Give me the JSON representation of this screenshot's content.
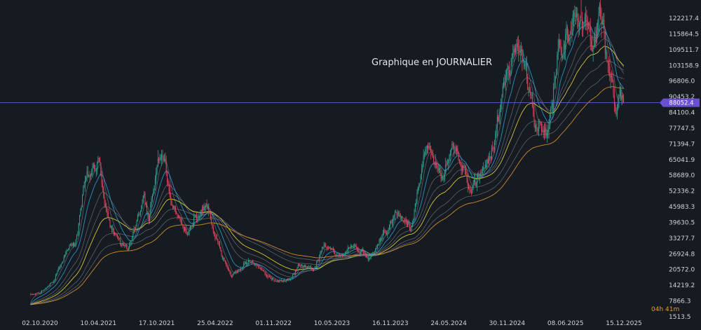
{
  "chart_data": {
    "type": "candlestick",
    "title": "Graphique en JOURNALIER",
    "current_price": "88052.4",
    "countdown": "04h 41m",
    "colors": {
      "background": "#161b22",
      "up": "#2e9e8f",
      "down": "#e0445a",
      "price_line": "#5a5fd0",
      "price_badge": "#6a4fd0",
      "ema_blue": "#2a8fc7",
      "ema_yellow": "#d6c43a",
      "ema_orange": "#d08a2a",
      "ema_grey": "#7d8693",
      "countdown": "#e89a30"
    },
    "y_ticks": [
      "122217.4",
      "115864.5",
      "109511.7",
      "103158.9",
      "96806.0",
      "90453.2",
      "84100.4",
      "77747.5",
      "71394.7",
      "65041.9",
      "58689.0",
      "52336.2",
      "45983.3",
      "39630.5",
      "33277.7",
      "26924.8",
      "20572.0",
      "14219.2",
      "7866.3",
      "1513.5"
    ],
    "x_ticks": [
      "02.10.2020",
      "10.04.2021",
      "17.10.2021",
      "25.04.2022",
      "01.11.2022",
      "10.05.2023",
      "16.11.2023",
      "24.05.2024",
      "30.11.2024",
      "08.06.2025",
      "15.12.2025"
    ],
    "ylim": [
      1513.5,
      122217.4
    ],
    "price_anchors": [
      [
        "2020-09-01",
        10500
      ],
      [
        "2020-10-02",
        10800
      ],
      [
        "2020-11-15",
        16500
      ],
      [
        "2020-12-31",
        29000
      ],
      [
        "2021-01-25",
        32000
      ],
      [
        "2021-02-20",
        52000
      ],
      [
        "2021-03-14",
        60500
      ],
      [
        "2021-04-14",
        63500
      ],
      [
        "2021-05-19",
        38000
      ],
      [
        "2021-06-22",
        31500
      ],
      [
        "2021-07-20",
        30000
      ],
      [
        "2021-09-07",
        51000
      ],
      [
        "2021-09-22",
        41000
      ],
      [
        "2021-10-20",
        66000
      ],
      [
        "2021-11-10",
        68500
      ],
      [
        "2021-12-04",
        48500
      ],
      [
        "2022-01-22",
        35500
      ],
      [
        "2022-03-28",
        47500
      ],
      [
        "2022-05-10",
        30000
      ],
      [
        "2022-06-18",
        18000
      ],
      [
        "2022-08-14",
        24500
      ],
      [
        "2022-09-30",
        19500
      ],
      [
        "2022-11-09",
        16000
      ],
      [
        "2022-12-31",
        16600
      ],
      [
        "2023-01-25",
        23000
      ],
      [
        "2023-03-10",
        20000
      ],
      [
        "2023-04-14",
        30500
      ],
      [
        "2023-06-15",
        25000
      ],
      [
        "2023-07-13",
        31500
      ],
      [
        "2023-09-11",
        25000
      ],
      [
        "2023-10-24",
        34500
      ],
      [
        "2023-12-08",
        44000
      ],
      [
        "2024-01-23",
        39000
      ],
      [
        "2024-03-14",
        73500
      ],
      [
        "2024-05-01",
        57000
      ],
      [
        "2024-06-07",
        71500
      ],
      [
        "2024-08-05",
        53500
      ],
      [
        "2024-09-30",
        63500
      ],
      [
        "2024-11-11",
        88000
      ],
      [
        "2024-12-17",
        107000
      ],
      [
        "2025-01-20",
        107500
      ],
      [
        "2025-02-28",
        80000
      ],
      [
        "2025-04-07",
        76000
      ],
      [
        "2025-05-22",
        111000
      ],
      [
        "2025-07-14",
        122000
      ],
      [
        "2025-08-14",
        123000
      ],
      [
        "2025-09-01",
        108000
      ],
      [
        "2025-10-06",
        125000
      ],
      [
        "2025-11-04",
        100000
      ],
      [
        "2025-11-21",
        82000
      ],
      [
        "2025-12-03",
        93500
      ],
      [
        "2025-12-15",
        88052
      ]
    ],
    "moving_average_periods": [
      20,
      50,
      100,
      150,
      200,
      300,
      400,
      500
    ],
    "grid": false,
    "legend": "none"
  }
}
